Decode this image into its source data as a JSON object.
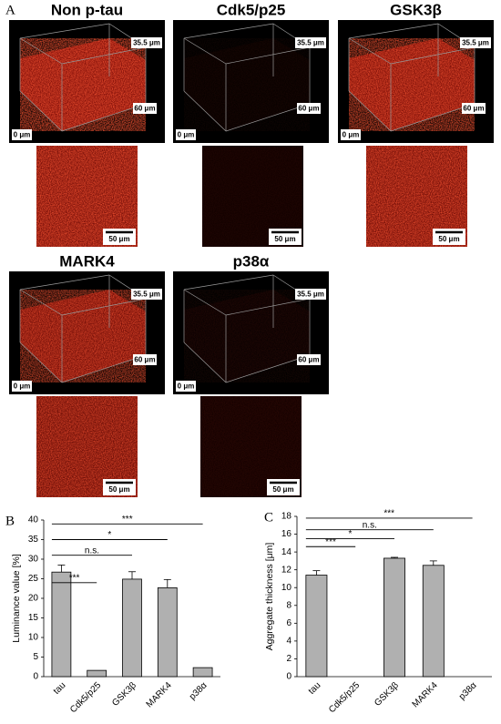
{
  "figure_a": {
    "panel": "A",
    "samples": [
      {
        "title": "Non p-tau"
      },
      {
        "title": "Cdk5/p25"
      },
      {
        "title": "GSK3β"
      },
      {
        "title": "MARK4"
      },
      {
        "title": "p38α"
      }
    ],
    "depth_label": "35.5 μm",
    "width_label": "60 μm",
    "origin_label": "0 μm",
    "scale_label": "50 μm"
  },
  "chart_data": [
    {
      "type": "bar",
      "panel": "B",
      "y_label": "Luminance value [%]",
      "categories": [
        "tau",
        "Cdk5/p25",
        "GSK3β",
        "MARK4",
        "p38α"
      ],
      "values": [
        26.7,
        1.6,
        24.9,
        22.7,
        2.3
      ],
      "errors": [
        1.8,
        0,
        1.9,
        2.1,
        0
      ],
      "color": "#b0b0b0",
      "ylim": [
        0,
        40
      ],
      "yticks": [
        0,
        5,
        10,
        15,
        20,
        25,
        30,
        35,
        40
      ],
      "annotations": [
        {
          "text": "***",
          "from": "tau",
          "to": "Cdk5/p25",
          "y": 24
        },
        {
          "text": "n.s.",
          "from": "tau",
          "to": "GSK3β",
          "y": 31
        },
        {
          "text": "*",
          "from": "tau",
          "to": "MARK4",
          "y": 35
        },
        {
          "text": "***",
          "from": "tau",
          "to": "p38α",
          "y": 39
        }
      ]
    },
    {
      "type": "bar",
      "panel": "C",
      "y_label": "Aggregate thickness [μm]",
      "categories": [
        "tau",
        "Cdk5/p25",
        "GSK3β",
        "MARK4",
        "p38α"
      ],
      "values": [
        11.4,
        0,
        13.3,
        12.5,
        0
      ],
      "errors": [
        0.5,
        0,
        0.1,
        0.5,
        0
      ],
      "color": "#b0b0b0",
      "ylim": [
        0,
        18
      ],
      "yticks": [
        0,
        2,
        4,
        6,
        8,
        10,
        12,
        14,
        16,
        18
      ],
      "annotations": [
        {
          "text": "***",
          "from": "tau",
          "to": "Cdk5/p25",
          "y": 14.6
        },
        {
          "text": "*",
          "from": "tau",
          "to": "GSK3β",
          "y": 15.5
        },
        {
          "text": "n.s.",
          "from": "tau",
          "to": "MARK4",
          "y": 16.5
        },
        {
          "text": "***",
          "from": "tau",
          "to": "p38α",
          "y": 17.8
        }
      ]
    }
  ]
}
